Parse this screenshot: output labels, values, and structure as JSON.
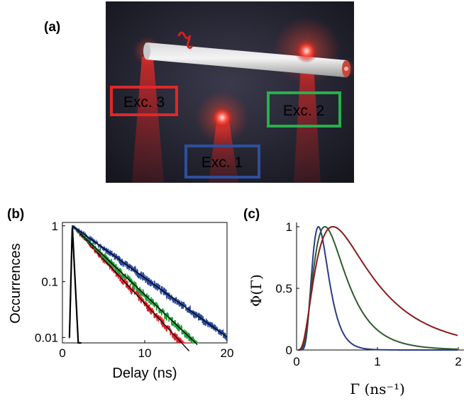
{
  "panels": {
    "a": {
      "label": "(a)",
      "boxes": [
        {
          "text": "Exc. 3",
          "color": "#e0272b"
        },
        {
          "text": "Exc. 2",
          "color": "#27b04a"
        },
        {
          "text": "Exc. 1",
          "color": "#2f4f9c"
        }
      ]
    },
    "b": {
      "label": "(b)"
    },
    "c": {
      "label": "(c)"
    }
  },
  "colors": {
    "red": "#e0202a",
    "green": "#1f9e3a",
    "blue": "#2b4aa0",
    "dark_red": "#8b1a1a",
    "dark_green": "#2f5a2b",
    "dark_blue": "#2b3a8a",
    "fit": "#000000"
  },
  "chart_data": [
    {
      "type": "line",
      "panel": "(b)",
      "xlabel": "Delay (ns)",
      "ylabel": "Occurrences",
      "xlim": [
        0,
        20
      ],
      "ylim": [
        0.008,
        1.15
      ],
      "yscale": "log",
      "xticks": [
        0,
        10,
        20
      ],
      "yticks": [
        1,
        0.1,
        0.01
      ],
      "ytick_labels": [
        "1",
        "0.1",
        "0.01"
      ],
      "grid": false,
      "series": [
        {
          "color": "red",
          "peak_x": 1.2,
          "decay_ns": 2.75,
          "end_x": 15.5
        },
        {
          "color": "green",
          "peak_x": 1.2,
          "decay_ns": 3.1,
          "end_x": 16.5
        },
        {
          "color": "blue",
          "peak_x": 1.2,
          "decay_ns": 4.1,
          "end_x": 20
        },
        {
          "color": "fit",
          "peak_x": 1.2,
          "decay_ns": 0.15,
          "end_x": 2.3
        }
      ]
    },
    {
      "type": "line",
      "panel": "(c)",
      "xlabel": "Γ (ns⁻¹)",
      "ylabel": "Φ(Γ)",
      "xlim": [
        0,
        2
      ],
      "ylim": [
        0,
        1.05
      ],
      "xticks": [
        0,
        1,
        2
      ],
      "yticks": [
        0,
        0.5,
        1
      ],
      "grid": false,
      "series": [
        {
          "color": "dark_blue",
          "peak_x": 0.27,
          "sigma": 0.38
        },
        {
          "color": "dark_green",
          "peak_x": 0.35,
          "sigma": 0.55
        },
        {
          "color": "dark_red",
          "peak_x": 0.45,
          "sigma": 0.72
        }
      ]
    }
  ]
}
